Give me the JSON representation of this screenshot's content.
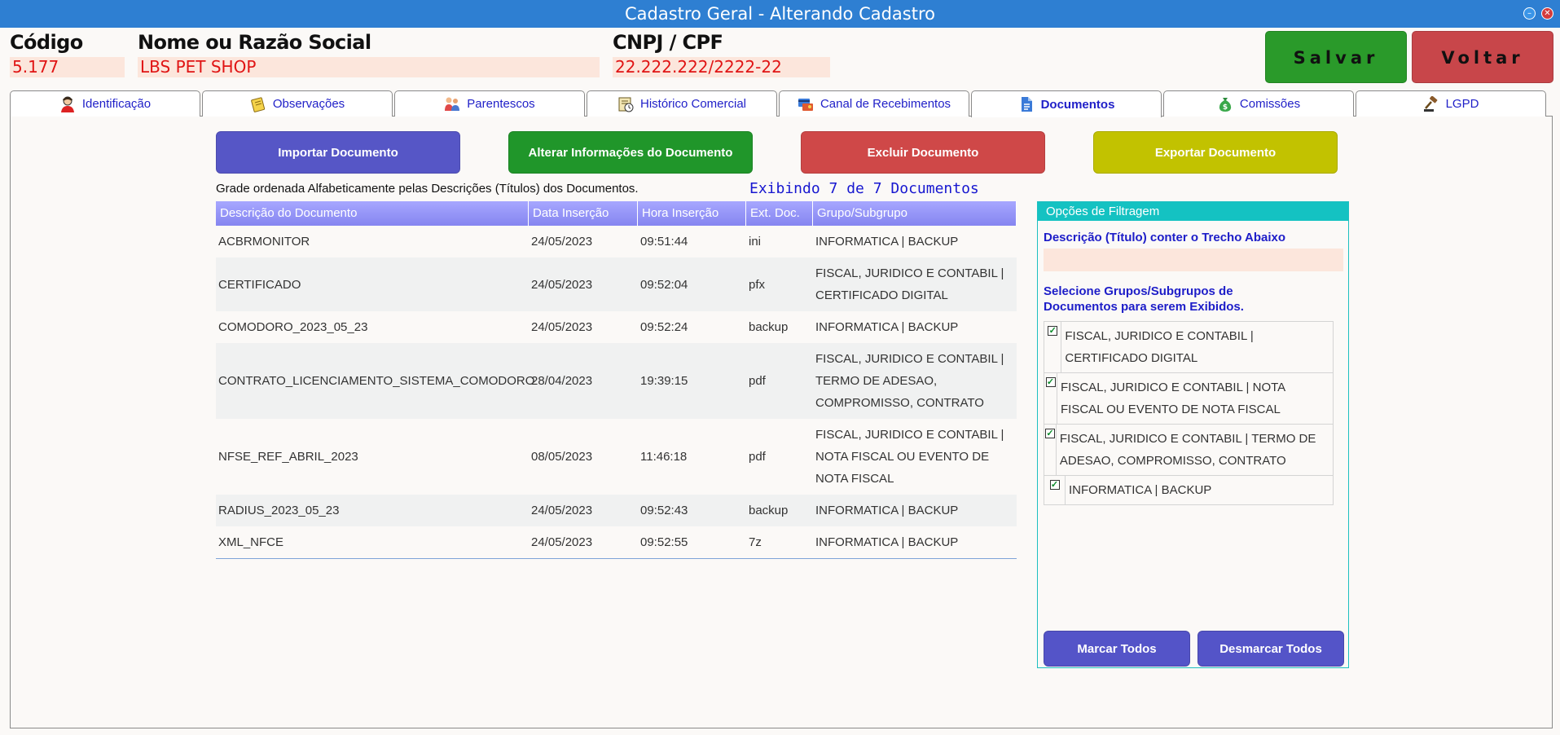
{
  "window": {
    "title": "Cadastro Geral - Alterando Cadastro"
  },
  "header": {
    "codigo_label": "Código",
    "codigo_value": "5.177",
    "nome_label": "Nome ou Razão Social",
    "nome_value": "LBS PET SHOP",
    "cnpj_label": "CNPJ / CPF",
    "cnpj_value": "22.222.222/2222-22",
    "salvar_label": "Salvar",
    "voltar_label": "Voltar"
  },
  "tabs": [
    {
      "label": "Identificação",
      "icon": "person-icon"
    },
    {
      "label": "Observações",
      "icon": "notes-icon"
    },
    {
      "label": "Parentescos",
      "icon": "family-icon"
    },
    {
      "label": "Histórico Comercial",
      "icon": "history-icon"
    },
    {
      "label": "Canal de Recebimentos",
      "icon": "payment-icon"
    },
    {
      "label": "Documentos",
      "icon": "document-icon",
      "active": true
    },
    {
      "label": "Comissões",
      "icon": "money-bag-icon"
    },
    {
      "label": "LGPD",
      "icon": "gavel-icon"
    }
  ],
  "actions": {
    "importar": "Importar Documento",
    "alterar": "Alterar Informações do  Documento",
    "excluir": "Excluir Documento",
    "exportar": "Exportar Documento"
  },
  "grid": {
    "caption": "Grade ordenada Alfabeticamente pelas Descrições (Títulos) dos Documentos.",
    "count": "Exibindo 7 de 7 Documentos",
    "columns": [
      "Descrição do Documento",
      "Data Inserção",
      "Hora Inserção",
      "Ext. Doc.",
      "Grupo/Subgrupo"
    ],
    "rows": [
      [
        "ACBRMONITOR",
        "24/05/2023",
        "09:51:44",
        "ini",
        "INFORMATICA | BACKUP"
      ],
      [
        "CERTIFICADO",
        "24/05/2023",
        "09:52:04",
        "pfx",
        "FISCAL, JURIDICO E CONTABIL | CERTIFICADO DIGITAL"
      ],
      [
        "COMODORO_2023_05_23",
        "24/05/2023",
        "09:52:24",
        "backup",
        "INFORMATICA | BACKUP"
      ],
      [
        "CONTRATO_LICENCIAMENTO_SISTEMA_COMODORO",
        "28/04/2023",
        "19:39:15",
        "pdf",
        "FISCAL, JURIDICO E CONTABIL | TERMO DE ADESAO, COMPROMISSO, CONTRATO"
      ],
      [
        "NFSE_REF_ABRIL_2023",
        "08/05/2023",
        "11:46:18",
        "pdf",
        "FISCAL, JURIDICO E CONTABIL | NOTA FISCAL OU EVENTO DE NOTA FISCAL"
      ],
      [
        "RADIUS_2023_05_23",
        "24/05/2023",
        "09:52:43",
        "backup",
        "INFORMATICA | BACKUP"
      ],
      [
        "XML_NFCE",
        "24/05/2023",
        "09:52:55",
        "7z",
        "INFORMATICA | BACKUP"
      ]
    ]
  },
  "filter": {
    "title": "Opções de Filtragem",
    "desc_label": "Descrição (Título) conter o Trecho Abaixo",
    "desc_value": "",
    "groups_label": "Selecione Grupos/Subgrupos de Documentos para serem Exibidos.",
    "groups": [
      {
        "label": "FISCAL, JURIDICO E CONTABIL | CERTIFICADO DIGITAL",
        "checked": true
      },
      {
        "label": "FISCAL, JURIDICO E CONTABIL | NOTA FISCAL OU EVENTO DE NOTA FISCAL",
        "checked": true
      },
      {
        "label": "FISCAL, JURIDICO E CONTABIL | TERMO DE ADESAO, COMPROMISSO, CONTRATO",
        "checked": true
      },
      {
        "label": "INFORMATICA | BACKUP",
        "checked": true
      }
    ],
    "marcar_label": "Marcar Todos",
    "desmarcar_label": "Desmarcar Todos"
  }
}
